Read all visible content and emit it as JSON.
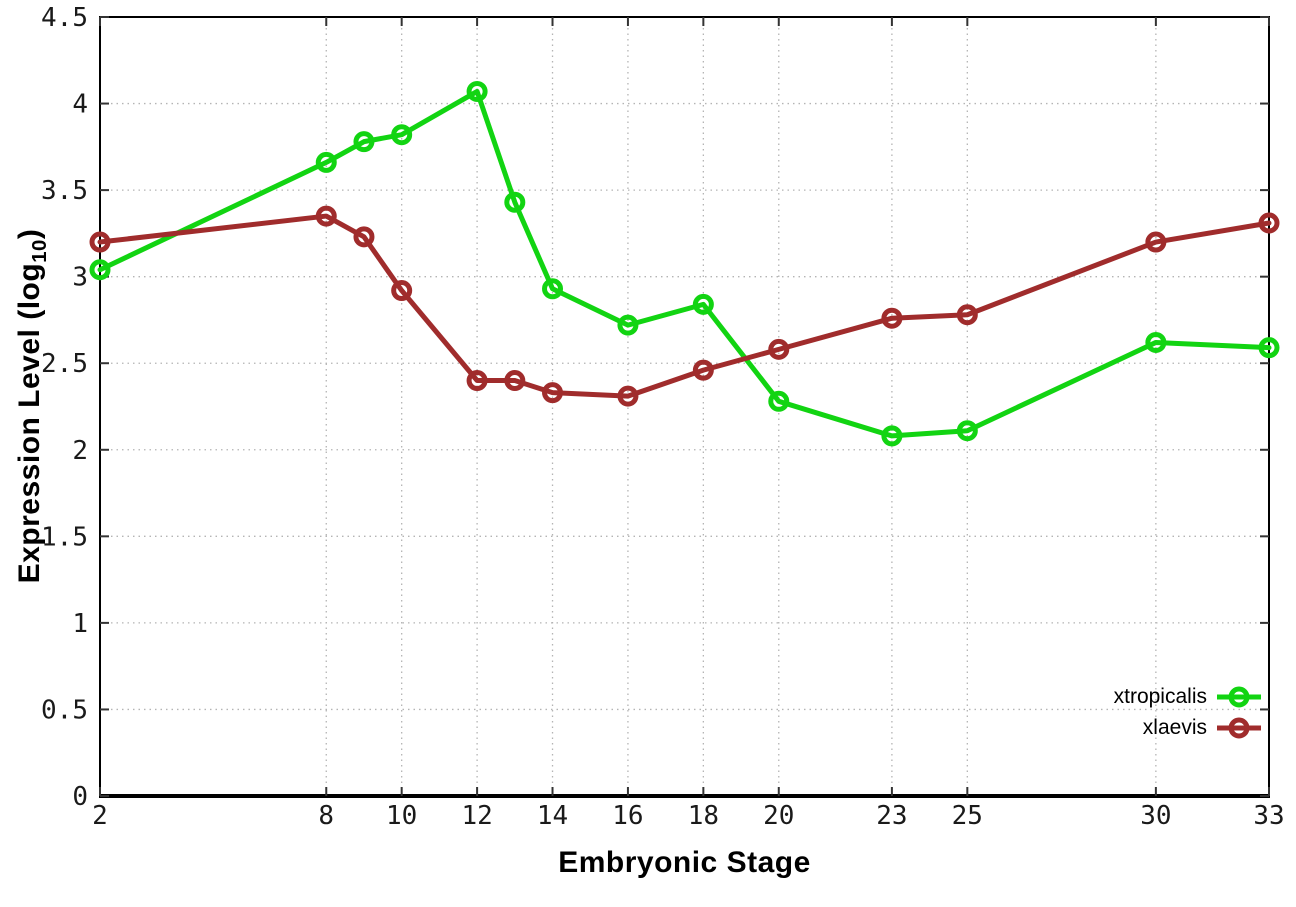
{
  "figure": {
    "background": "#ffffff",
    "border_color": "#000000",
    "grid_color": "#b4b4b4",
    "tick_mark_color": "#333333",
    "tick_label_color": "#1a1a1a"
  },
  "chart_data": {
    "type": "line",
    "title": "",
    "xlabel": "Embryonic Stage",
    "ylabel": "Expression Level (log10)",
    "ylabel_parts": {
      "prefix": "Expression Level (log",
      "subscript": "10",
      "suffix": ")"
    },
    "xlim": [
      2,
      33
    ],
    "ylim": [
      0,
      4.5
    ],
    "x_ticks": [
      2,
      8,
      10,
      12,
      14,
      16,
      18,
      20,
      23,
      25,
      30,
      33
    ],
    "y_ticks": [
      0,
      0.5,
      1,
      1.5,
      2,
      2.5,
      3,
      3.5,
      4,
      4.5
    ],
    "grid": "dotted",
    "legend_position": "bottom-right",
    "x": [
      2,
      8,
      9,
      10,
      12,
      13,
      14,
      16,
      18,
      20,
      23,
      25,
      30,
      33
    ],
    "series": [
      {
        "name": "xtropicalis",
        "color": "#12d412",
        "values": [
          3.04,
          3.66,
          3.78,
          3.82,
          4.07,
          3.43,
          2.93,
          2.72,
          2.84,
          2.28,
          2.08,
          2.11,
          2.62,
          2.59
        ]
      },
      {
        "name": "xlaevis",
        "color": "#a02c2c",
        "values": [
          3.2,
          3.35,
          3.23,
          2.92,
          2.4,
          2.4,
          2.33,
          2.31,
          2.46,
          2.58,
          2.76,
          2.78,
          3.2,
          3.31
        ]
      }
    ]
  }
}
